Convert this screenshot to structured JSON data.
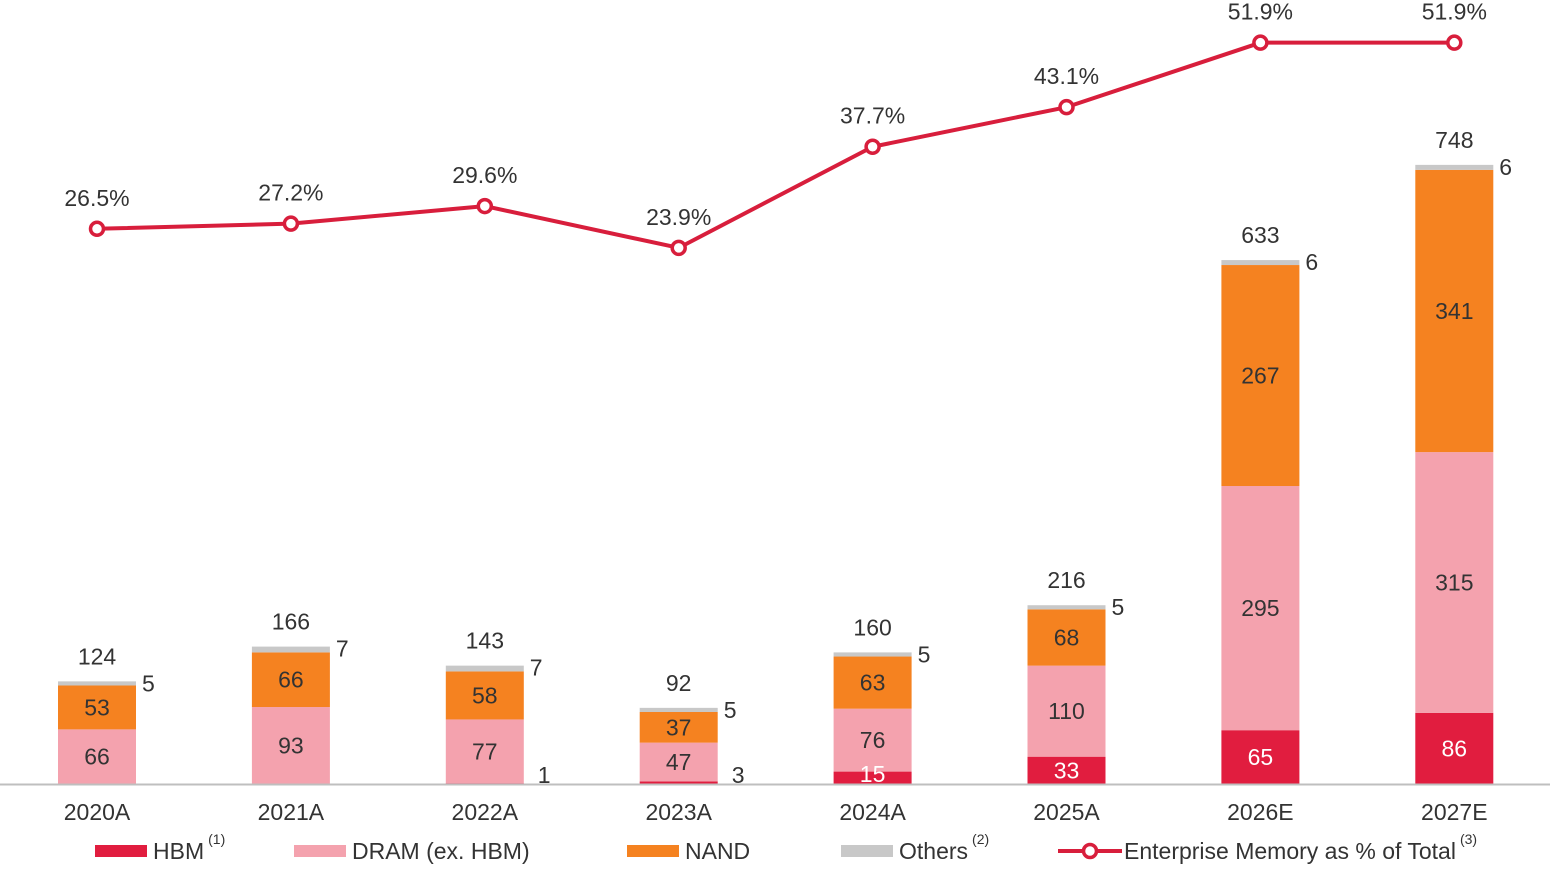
{
  "chart_data": {
    "type": "bar",
    "stacked": true,
    "categories": [
      "2020A",
      "2021A",
      "2022A",
      "2023A",
      "2024A",
      "2025A",
      "2026E",
      "2027E"
    ],
    "series": [
      {
        "name": "HBM",
        "values": [
          0,
          0,
          1,
          3,
          15,
          33,
          65,
          86
        ],
        "color": "#e11d3f"
      },
      {
        "name": "DRAM (ex. HBM)",
        "values": [
          66,
          93,
          77,
          47,
          76,
          110,
          295,
          315
        ],
        "color": "#f4a2ae"
      },
      {
        "name": "NAND",
        "values": [
          53,
          66,
          58,
          37,
          63,
          68,
          267,
          341
        ],
        "color": "#f58220"
      },
      {
        "name": "Others",
        "values": [
          5,
          7,
          7,
          5,
          5,
          5,
          6,
          6
        ],
        "color": "#c8c8c8"
      }
    ],
    "bar_labels": {
      "HBM": [
        "",
        "",
        "1",
        "3",
        "15",
        "33",
        "65",
        "86"
      ],
      "DRAM (ex. HBM)": [
        "66",
        "93",
        "77",
        "47",
        "76",
        "110",
        "295",
        "315"
      ],
      "NAND": [
        "53",
        "66",
        "58",
        "37",
        "63",
        "68",
        "267",
        "341"
      ],
      "Others": [
        "5",
        "7",
        "7",
        "5",
        "5",
        "5",
        "6",
        "6"
      ]
    },
    "totals": [
      "124",
      "166",
      "143",
      "92",
      "160",
      "216",
      "633",
      "748"
    ],
    "line": {
      "name": "Enterprise Memory as % of Total",
      "values": [
        26.5,
        27.2,
        29.6,
        23.9,
        37.7,
        43.1,
        51.9,
        51.9
      ],
      "labels": [
        "26.5%",
        "27.2%",
        "29.6%",
        "23.9%",
        "37.7%",
        "43.1%",
        "51.9%",
        "51.9%"
      ],
      "color": "#d81e3c"
    },
    "legend": [
      {
        "label": "HBM",
        "note": "(1)",
        "kind": "bar",
        "color": "#e11d3f"
      },
      {
        "label": "DRAM (ex. HBM)",
        "note": "",
        "kind": "bar",
        "color": "#f4a2ae"
      },
      {
        "label": "NAND",
        "note": "",
        "kind": "bar",
        "color": "#f58220"
      },
      {
        "label": "Others",
        "note": "(2)",
        "kind": "bar",
        "color": "#c8c8c8"
      },
      {
        "label": "Enterprise Memory as % of Total",
        "note": "(3)",
        "kind": "line",
        "color": "#d81e3c"
      }
    ],
    "legend_position": "bottom",
    "grid": false,
    "title": "",
    "xlabel": "",
    "ylabel": ""
  }
}
